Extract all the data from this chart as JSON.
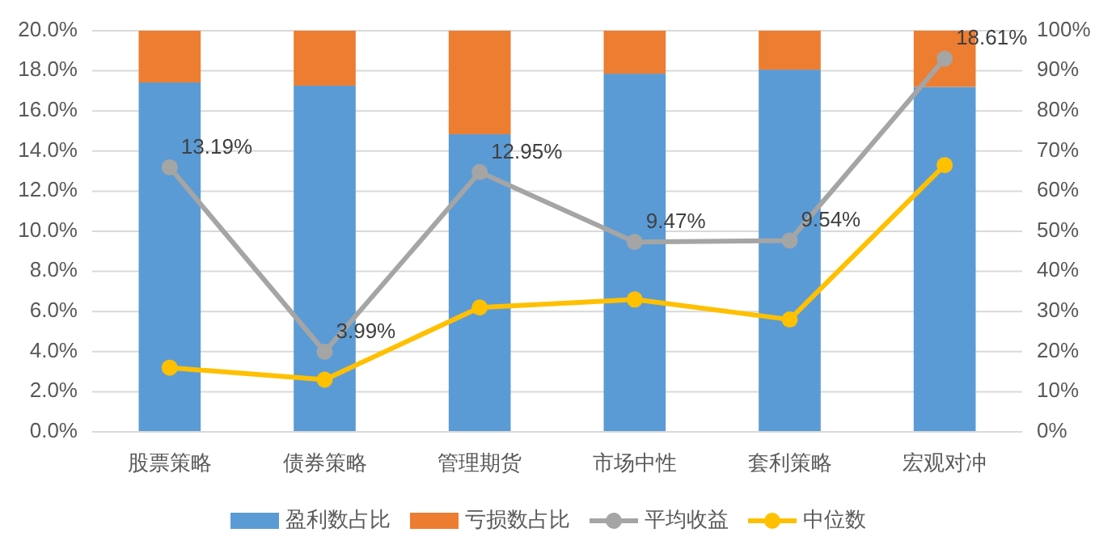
{
  "chart_data": {
    "type": "bar",
    "stacked": true,
    "grid": "y",
    "legend": "bottom",
    "marker": "circle",
    "categories": [
      "股票策略",
      "债券策略",
      "管理期货",
      "市场中性",
      "套利策略",
      "宏观对冲"
    ],
    "series": [
      {
        "name": "盈利数占比",
        "axis": "y2",
        "color": "#5b9bd5",
        "values": [
          87.1,
          86.3,
          74.2,
          89.3,
          90.3,
          86.0
        ]
      },
      {
        "name": "亏损数占比",
        "axis": "y2",
        "color": "#ed7d31",
        "values": [
          12.9,
          13.7,
          25.8,
          10.7,
          9.7,
          14.0
        ]
      },
      {
        "name": "平均收益",
        "type": "line",
        "axis": "y",
        "color": "#a5a5a5",
        "values": [
          13.19,
          3.99,
          12.95,
          9.47,
          9.54,
          18.61
        ],
        "value_labels": [
          "13.19%",
          "3.99%",
          "12.95%",
          "9.47%",
          "9.54%",
          "18.61%"
        ]
      },
      {
        "name": "中位数",
        "type": "line",
        "axis": "y",
        "color": "#ffc000",
        "values": [
          3.2,
          2.6,
          6.2,
          6.6,
          5.6,
          13.3
        ]
      }
    ],
    "ylim": [
      0,
      20
    ],
    "yticks": [
      {
        "value": 0,
        "label": "0.0%"
      },
      {
        "value": 2,
        "label": "2.0%"
      },
      {
        "value": 4,
        "label": "4.0%"
      },
      {
        "value": 6,
        "label": "6.0%"
      },
      {
        "value": 8,
        "label": "8.0%"
      },
      {
        "value": 10,
        "label": "10.0%"
      },
      {
        "value": 12,
        "label": "12.0%"
      },
      {
        "value": 14,
        "label": "14.0%"
      },
      {
        "value": 16,
        "label": "16.0%"
      },
      {
        "value": 18,
        "label": "18.0%"
      },
      {
        "value": 20,
        "label": "20.0%"
      }
    ],
    "y2lim": [
      0,
      100
    ],
    "y2ticks": [
      {
        "value": 0,
        "label": "0%"
      },
      {
        "value": 10,
        "label": "10%"
      },
      {
        "value": 20,
        "label": "20%"
      },
      {
        "value": 30,
        "label": "30%"
      },
      {
        "value": 40,
        "label": "40%"
      },
      {
        "value": 50,
        "label": "50%"
      },
      {
        "value": 60,
        "label": "60%"
      },
      {
        "value": 70,
        "label": "70%"
      },
      {
        "value": 80,
        "label": "80%"
      },
      {
        "value": 90,
        "label": "90%"
      },
      {
        "value": 100,
        "label": "100%"
      }
    ]
  }
}
